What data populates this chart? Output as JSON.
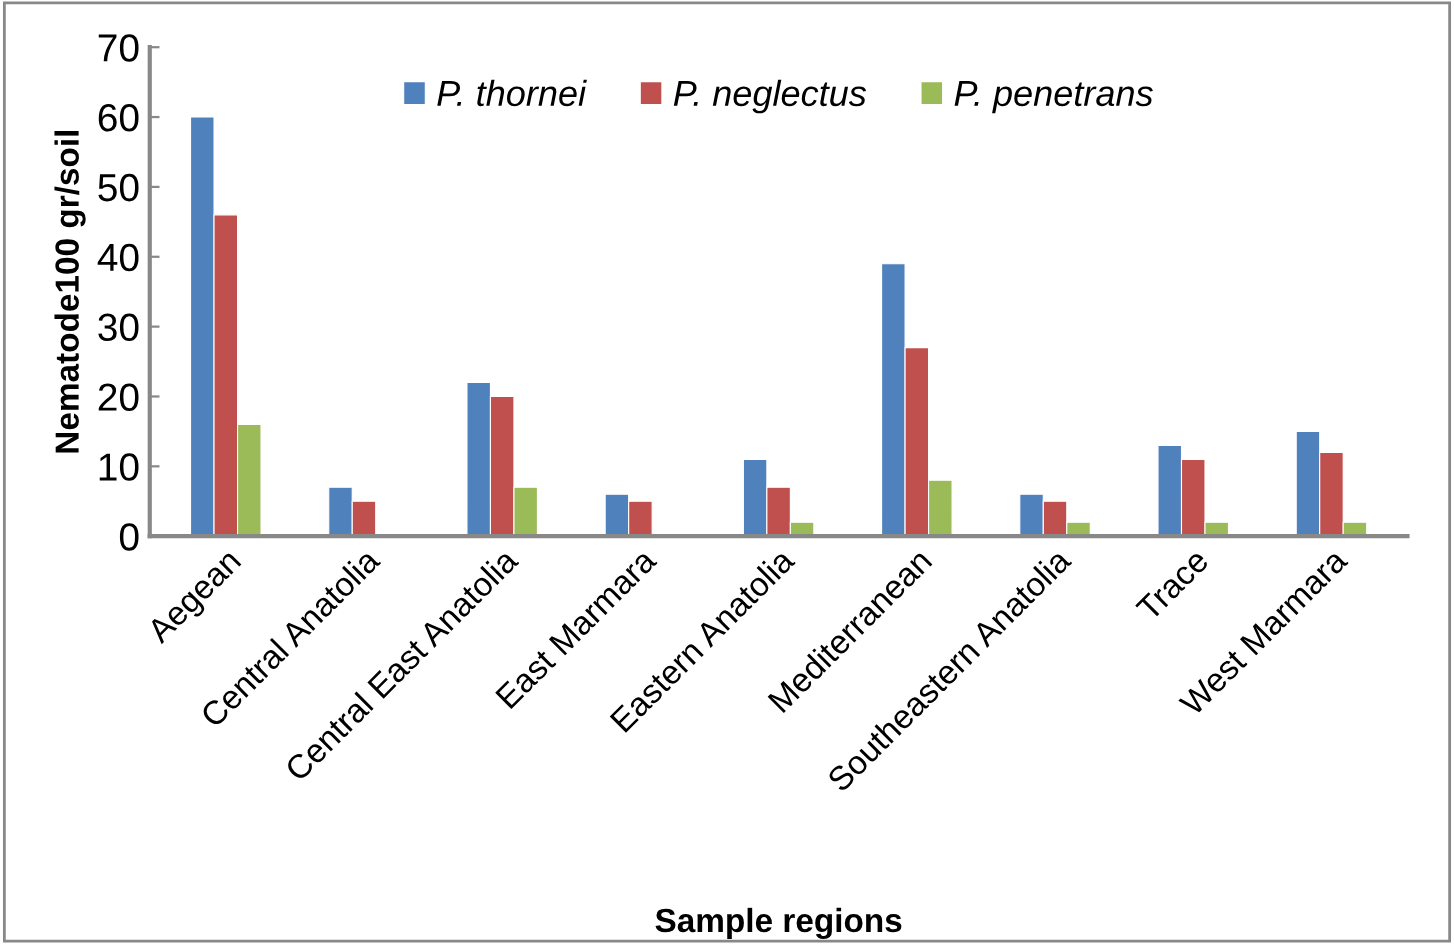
{
  "chart_data": {
    "type": "bar",
    "xlabel": "Sample regions",
    "ylabel": "Nematode100 gr/soil",
    "categories": [
      "Aegean",
      "Central Anatolia",
      "Central East Anatolia",
      "East Marmara",
      "Eastern Anatolia",
      "Mediterranean",
      "Southeastern Anatolia",
      "Trace",
      "West Marmara"
    ],
    "series": [
      {
        "name": "P. thornei",
        "color": "#4f81bd",
        "values": [
          60,
          7,
          22,
          6,
          11,
          39,
          6,
          13,
          15
        ]
      },
      {
        "name": "P. neglectus",
        "color": "#c0504d",
        "values": [
          46,
          5,
          20,
          5,
          7,
          27,
          5,
          11,
          12
        ]
      },
      {
        "name": "P. penetrans",
        "color": "#9bbb59",
        "values": [
          16,
          null,
          7,
          null,
          2,
          8,
          2,
          2,
          2
        ]
      }
    ],
    "ylim": [
      0,
      70
    ],
    "yticks": [
      0,
      10,
      20,
      30,
      40,
      50,
      60,
      70
    ],
    "grid": false,
    "legend": "top"
  }
}
